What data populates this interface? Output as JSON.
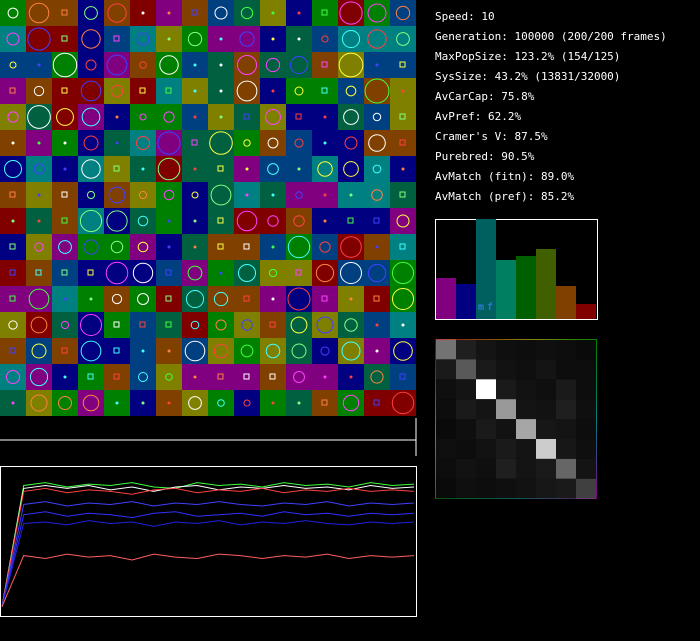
{
  "stats": [
    "Speed: 10",
    "Generation: 100000 (200/200 frames)",
    "MaxPopSize: 123.2% (154/125)",
    "SysSize: 43.2% (13831/32000)",
    "AvCarCap: 75.8%",
    "AvPref: 62.2%",
    "Cramer's V: 87.5%",
    "Purebred: 90.5%",
    "AvMatch (fitn): 89.0%",
    "AvMatch (pref): 85.2%"
  ],
  "histogram": {
    "values": [
      41,
      35,
      100,
      59,
      63,
      70,
      33,
      15
    ],
    "colors": [
      "#800080",
      "#000080",
      "#006060",
      "#008060",
      "#006000",
      "#406000",
      "#804000",
      "#800000"
    ],
    "labels": [
      "m",
      "f"
    ]
  },
  "heatmap": {
    "values": [
      [
        0.45,
        0.12,
        0.08,
        0.06,
        0.05,
        0.06,
        0.05,
        0.04
      ],
      [
        0.1,
        0.35,
        0.1,
        0.07,
        0.06,
        0.08,
        0.05,
        0.05
      ],
      [
        0.06,
        0.08,
        1.0,
        0.1,
        0.07,
        0.06,
        0.1,
        0.05
      ],
      [
        0.05,
        0.1,
        0.08,
        0.6,
        0.08,
        0.07,
        0.12,
        0.06
      ],
      [
        0.04,
        0.06,
        0.1,
        0.07,
        0.65,
        0.09,
        0.08,
        0.05
      ],
      [
        0.06,
        0.05,
        0.07,
        0.1,
        0.08,
        0.8,
        0.09,
        0.06
      ],
      [
        0.05,
        0.07,
        0.06,
        0.12,
        0.08,
        0.1,
        0.4,
        0.08
      ],
      [
        0.04,
        0.06,
        0.05,
        0.06,
        0.07,
        0.09,
        0.1,
        0.25
      ]
    ]
  },
  "lines": {
    "ylim": [
      0,
      1
    ],
    "series": [
      {
        "color": "#40ff40",
        "values": [
          0.05,
          0.88,
          0.9,
          0.87,
          0.89,
          0.88,
          0.9,
          0.87,
          0.86,
          0.9,
          0.88,
          0.89,
          0.87,
          0.9,
          0.88,
          0.89,
          0.87,
          0.9,
          0.88,
          0.89
        ]
      },
      {
        "color": "#ffffff",
        "values": [
          0.05,
          0.86,
          0.88,
          0.86,
          0.88,
          0.85,
          0.87,
          0.84,
          0.87,
          0.88,
          0.85,
          0.87,
          0.86,
          0.88,
          0.86,
          0.87,
          0.85,
          0.88,
          0.86,
          0.87
        ]
      },
      {
        "color": "#ff4040",
        "values": [
          0.05,
          0.84,
          0.86,
          0.83,
          0.85,
          0.84,
          0.82,
          0.85,
          0.86,
          0.83,
          0.85,
          0.84,
          0.86,
          0.83,
          0.85,
          0.84,
          0.86,
          0.84,
          0.85,
          0.84
        ]
      },
      {
        "color": "#4040ff",
        "values": [
          0.05,
          0.75,
          0.77,
          0.74,
          0.76,
          0.75,
          0.77,
          0.74,
          0.76,
          0.75,
          0.77,
          0.75,
          0.74,
          0.76,
          0.75,
          0.77,
          0.74,
          0.76,
          0.75,
          0.76
        ]
      },
      {
        "color": "#3030ff",
        "values": [
          0.05,
          0.68,
          0.7,
          0.67,
          0.69,
          0.68,
          0.66,
          0.69,
          0.7,
          0.67,
          0.68,
          0.69,
          0.67,
          0.7,
          0.68,
          0.69,
          0.67,
          0.69,
          0.68,
          0.69
        ]
      },
      {
        "color": "#2020e0",
        "values": [
          0.05,
          0.62,
          0.63,
          0.61,
          0.64,
          0.62,
          0.63,
          0.6,
          0.63,
          0.62,
          0.64,
          0.61,
          0.63,
          0.62,
          0.64,
          0.62,
          0.61,
          0.63,
          0.62,
          0.63
        ]
      },
      {
        "color": "#ff6060",
        "values": [
          0.05,
          0.4,
          0.38,
          0.41,
          0.39,
          0.4,
          0.37,
          0.41,
          0.39,
          0.38,
          0.41,
          0.4,
          0.38,
          0.4,
          0.39,
          0.41,
          0.38,
          0.4,
          0.39,
          0.4
        ]
      }
    ]
  }
}
